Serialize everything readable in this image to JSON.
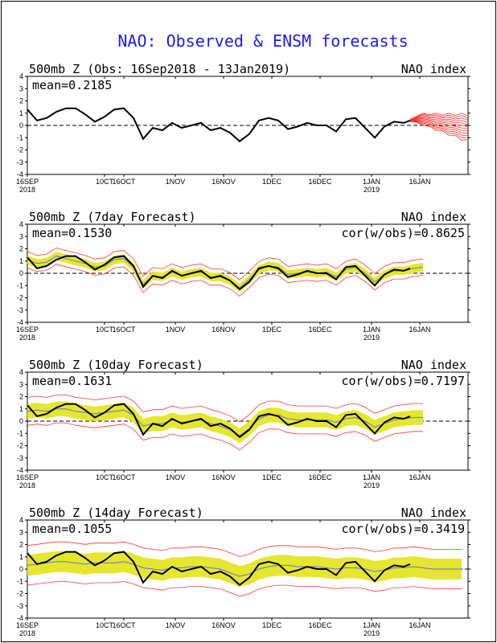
{
  "title": "NAO: Observed & ENSM forecasts",
  "colors": {
    "title": "#1a1aff",
    "observed": "#000000",
    "forecast_member": "#ff3333",
    "ensemble_range": "#e6e62e",
    "ensemble_mean": "#5a78d8",
    "zero_line": "#000000"
  },
  "x_ticks": [
    {
      "day": 0,
      "label": "16SEP",
      "year": "2018"
    },
    {
      "day": 24,
      "label": "10CT",
      "year": ""
    },
    {
      "day": 30,
      "label": "16OCT",
      "year": ""
    },
    {
      "day": 46,
      "label": "1NOV",
      "year": ""
    },
    {
      "day": 61,
      "label": "16NOV",
      "year": ""
    },
    {
      "day": 76,
      "label": "1DEC",
      "year": ""
    },
    {
      "day": 91,
      "label": "16DEC",
      "year": ""
    },
    {
      "day": 107,
      "label": "1JAN",
      "year": "2019"
    },
    {
      "day": 122,
      "label": "16JAN",
      "year": ""
    }
  ],
  "y_ticks": [
    4,
    3,
    2,
    1,
    0,
    -1,
    -2,
    -3,
    -4
  ],
  "x_range": [
    0,
    137
  ],
  "y_range": [
    -4,
    4
  ],
  "panels": [
    {
      "id": "obs",
      "title": "500mb  Z (Obs: 16Sep2018 - 13Jan2019)",
      "right_label": "NAO index",
      "mean": "mean=0.2185",
      "cor": "",
      "spread": 0
    },
    {
      "id": "d7",
      "title": "500mb  Z (7day Forecast)",
      "right_label": "NAO index",
      "mean": "mean=0.1530",
      "cor": "cor(w/obs)=0.8625",
      "spread": 0.35
    },
    {
      "id": "d10",
      "title": "500mb  Z (10day Forecast)",
      "right_label": "NAO index",
      "mean": "mean=0.1631",
      "cor": "cor(w/obs)=0.7197",
      "spread": 0.6
    },
    {
      "id": "d14",
      "title": "500mb  Z (14day Forecast)",
      "right_label": "NAO index",
      "mean": "mean=0.1055",
      "cor": "cor(w/obs)=0.3419",
      "spread": 0.85
    }
  ],
  "chart_data": {
    "type": "line",
    "title": "NAO: Observed & ENSM forecasts",
    "ylabel": "NAO index",
    "ylim": [
      -4,
      4
    ],
    "x_period": "16Sep2018 - 13Jan2019",
    "observed": {
      "name": "Obs",
      "x": [
        0,
        3,
        6,
        9,
        12,
        15,
        18,
        21,
        24,
        27,
        30,
        33,
        36,
        39,
        42,
        45,
        48,
        51,
        54,
        57,
        60,
        63,
        66,
        69,
        72,
        75,
        78,
        81,
        84,
        87,
        90,
        93,
        96,
        99,
        102,
        105,
        108,
        111,
        114,
        117,
        119
      ],
      "y": [
        1.3,
        0.4,
        0.6,
        1.1,
        1.4,
        1.4,
        0.9,
        0.3,
        0.7,
        1.3,
        1.4,
        0.6,
        -1.1,
        -0.2,
        -0.4,
        0.2,
        -0.2,
        0.0,
        0.2,
        -0.4,
        -0.2,
        -0.6,
        -1.3,
        -0.7,
        0.4,
        0.6,
        0.4,
        -0.3,
        -0.1,
        0.2,
        0.0,
        0.0,
        -0.5,
        0.5,
        0.6,
        -0.2,
        -1.0,
        -0.1,
        0.3,
        0.2,
        0.4
      ]
    },
    "forecast_plume": {
      "name": "ENSM members",
      "x": [
        119,
        121,
        123,
        125,
        127,
        129,
        131,
        133,
        135,
        137
      ],
      "y_mean": [
        0.4,
        0.5,
        0.5,
        0.4,
        0.3,
        0.2,
        0.1,
        0.0,
        -0.1,
        -0.2
      ],
      "y_spread": [
        0.1,
        0.3,
        0.5,
        0.6,
        0.7,
        0.8,
        0.9,
        1.0,
        1.1,
        1.2
      ]
    },
    "forecasts": [
      {
        "name": "7day Forecast",
        "x": [
          0,
          3,
          6,
          9,
          12,
          15,
          18,
          21,
          24,
          27,
          30,
          33,
          36,
          39,
          42,
          45,
          48,
          51,
          54,
          57,
          60,
          63,
          66,
          69,
          72,
          75,
          78,
          81,
          84,
          87,
          90,
          93,
          96,
          99,
          102,
          105,
          108,
          111,
          114,
          117,
          120,
          123
        ],
        "y": [
          1.1,
          0.8,
          0.9,
          1.4,
          1.2,
          1.0,
          0.8,
          0.5,
          0.6,
          1.1,
          1.2,
          0.5,
          -0.9,
          -0.2,
          -0.3,
          0.1,
          -0.2,
          0.0,
          0.1,
          -0.3,
          -0.3,
          -0.6,
          -1.2,
          -0.5,
          0.3,
          0.6,
          0.5,
          -0.1,
          0.0,
          0.1,
          0.0,
          0.1,
          -0.3,
          0.3,
          0.5,
          0.0,
          -0.7,
          -0.1,
          0.2,
          0.2,
          0.4,
          0.5
        ]
      },
      {
        "name": "10day Forecast",
        "x": [
          0,
          3,
          6,
          9,
          12,
          15,
          18,
          21,
          24,
          27,
          30,
          33,
          36,
          39,
          42,
          45,
          48,
          51,
          54,
          57,
          60,
          63,
          66,
          69,
          72,
          75,
          78,
          81,
          84,
          87,
          90,
          93,
          96,
          99,
          102,
          105,
          108,
          111,
          114,
          117,
          120,
          123
        ],
        "y": [
          0.8,
          0.9,
          0.8,
          1.0,
          1.0,
          0.8,
          0.7,
          0.6,
          0.7,
          0.8,
          0.9,
          0.5,
          -0.4,
          -0.2,
          -0.2,
          0.1,
          -0.1,
          0.0,
          0.1,
          -0.2,
          -0.4,
          -0.7,
          -1.2,
          -0.6,
          0.2,
          0.5,
          0.5,
          0.2,
          0.1,
          0.1,
          0.1,
          0.1,
          -0.1,
          0.2,
          0.3,
          0.0,
          -0.5,
          -0.2,
          0.1,
          0.2,
          0.3,
          0.3
        ]
      },
      {
        "name": "14day Forecast",
        "x": [
          0,
          3,
          6,
          9,
          12,
          15,
          18,
          21,
          24,
          27,
          30,
          33,
          36,
          39,
          42,
          45,
          48,
          51,
          54,
          57,
          60,
          63,
          66,
          69,
          72,
          75,
          78,
          81,
          84,
          87,
          90,
          93,
          96,
          99,
          102,
          105,
          108,
          111,
          114,
          117,
          120,
          123,
          126,
          129,
          132,
          135
        ],
        "y": [
          0.3,
          0.4,
          0.5,
          0.6,
          0.6,
          0.5,
          0.4,
          0.5,
          0.5,
          0.5,
          0.6,
          0.4,
          0.1,
          0.0,
          -0.1,
          0.1,
          0.1,
          0.2,
          0.2,
          0.1,
          0.0,
          -0.3,
          -0.6,
          -0.4,
          0.0,
          0.2,
          0.3,
          0.3,
          0.2,
          0.2,
          0.2,
          0.1,
          0.0,
          0.1,
          0.1,
          0.0,
          -0.2,
          -0.1,
          0.1,
          0.1,
          0.2,
          0.1,
          0.0,
          0.0,
          0.0,
          0.0
        ]
      }
    ]
  }
}
